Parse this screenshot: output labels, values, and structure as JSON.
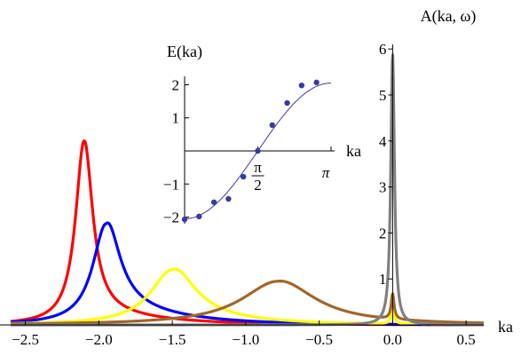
{
  "chart_data": [
    {
      "type": "line",
      "title": "",
      "xlabel": "ka",
      "ylabel": "A(ka, ω)",
      "xlim": [
        -2.6,
        0.62
      ],
      "ylim": [
        0,
        6.1
      ],
      "x_ticks": [
        {
          "value": -2.5,
          "label": "−2.5"
        },
        {
          "value": -2.0,
          "label": "−2.0"
        },
        {
          "value": -1.5,
          "label": "−1.5"
        },
        {
          "value": -1.0,
          "label": "−1.0"
        },
        {
          "value": -0.5,
          "label": "−0.5"
        },
        {
          "value": 0.0,
          "label": "0.0"
        },
        {
          "value": 0.5,
          "label": "0.5"
        }
      ],
      "y_ticks": [
        {
          "value": 1,
          "label": "1"
        },
        {
          "value": 2,
          "label": "2"
        },
        {
          "value": 3,
          "label": "3"
        },
        {
          "value": 4,
          "label": "4"
        },
        {
          "value": 5,
          "label": "5"
        },
        {
          "value": 6,
          "label": "6"
        }
      ],
      "series": [
        {
          "color": "#ff0000",
          "peak_x": -2.1,
          "peak_y": 4.0,
          "width": 0.07,
          "tail": 0.35,
          "spike": 0.0
        },
        {
          "color": "#0000ff",
          "peak_x": -1.95,
          "peak_y": 2.2,
          "width": 0.11,
          "tail": 0.5,
          "spike": 0.0
        },
        {
          "color": "#ffff00",
          "peak_x": -1.5,
          "peak_y": 1.2,
          "width": 0.18,
          "tail": 0.22,
          "spike": 0.35
        },
        {
          "color": "#a0662b",
          "peak_x": -0.78,
          "peak_y": 0.95,
          "width": 0.3,
          "tail": 0.05,
          "spike": 0.55
        },
        {
          "color": "#808080",
          "peak_x": 0.0,
          "peak_y": 5.9,
          "width": 0.015,
          "tail": 0.0,
          "spike": 0.0
        }
      ]
    },
    {
      "type": "scatter",
      "title": "",
      "xlabel": "ka",
      "ylabel": "E(ka)",
      "xlim": [
        0,
        3.14159
      ],
      "ylim": [
        -2.2,
        2.2
      ],
      "x_ticks": [
        {
          "value": 1.5708,
          "label": "π",
          "sublabel": "2",
          "fraction": true
        },
        {
          "value": 3.14159,
          "label": "π",
          "fraction": false
        }
      ],
      "y_ticks": [
        {
          "value": -2,
          "label": "−2"
        },
        {
          "value": -1,
          "label": "−1"
        },
        {
          "value": 1,
          "label": "1"
        },
        {
          "value": 2,
          "label": "2"
        }
      ],
      "fit_color": "#3a3aa0",
      "point_color": "#3a3aa0",
      "points": [
        {
          "x": 0.0,
          "y": -2.07
        },
        {
          "x": 0.31,
          "y": -1.98
        },
        {
          "x": 0.63,
          "y": -1.55
        },
        {
          "x": 0.94,
          "y": -1.45
        },
        {
          "x": 1.26,
          "y": -0.78
        },
        {
          "x": 1.57,
          "y": 0.0
        },
        {
          "x": 1.88,
          "y": 0.78
        },
        {
          "x": 2.2,
          "y": 1.45
        },
        {
          "x": 2.51,
          "y": 1.98
        },
        {
          "x": 2.83,
          "y": 2.07
        }
      ]
    }
  ]
}
